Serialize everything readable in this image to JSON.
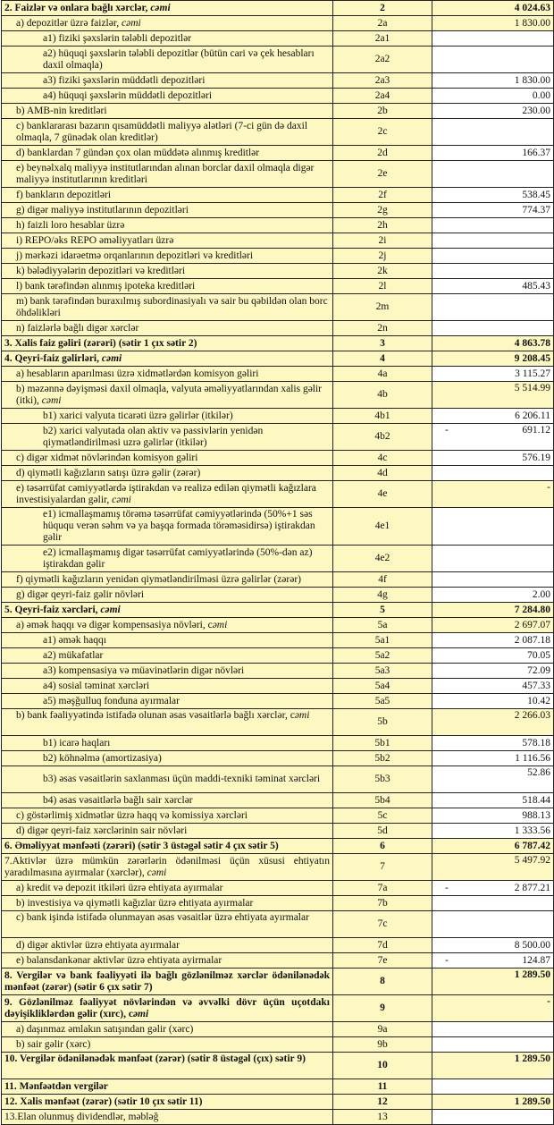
{
  "colors": {
    "row_bg": "#fdf8c2",
    "value_bg": "#ffffff",
    "border": "#222222"
  },
  "rows": [
    {
      "label": "2. Faizlər və onlara bağlı xərclər, ",
      "em": "cəmi",
      "code": "2",
      "value": "4 024.63",
      "bold": true,
      "level": 0,
      "h": 1,
      "hl": true
    },
    {
      "label": "a) depozitlər üzrə faizlər, ",
      "em": "cəmi",
      "code": "2a",
      "value": "1 830.00",
      "level": 1,
      "h": 1,
      "hl": true
    },
    {
      "label": "a1) fiziki şəxslərin tələbli depozitlər",
      "code": "2a1",
      "value": "",
      "level": 2,
      "h": 1
    },
    {
      "label": "a2) hüquqi şəxslərin tələbli depozitlər (bütün cari və çek hesabları daxil olmaqla)",
      "code": "2a2",
      "value": "",
      "level": 2,
      "h": 2
    },
    {
      "label": "a3) fiziki şəxslərin müddətli depozitləri",
      "code": "2a3",
      "value": "1 830.00",
      "level": 2,
      "h": 1
    },
    {
      "label": "a4) hüquqi şəxslərin müddətli depozitləri",
      "code": "2a4",
      "value": "0.00",
      "level": 2,
      "h": 1
    },
    {
      "label": "b) AMB-nin kreditləri",
      "code": "2b",
      "value": "230.00",
      "level": 1,
      "h": 1
    },
    {
      "label": "c) banklararası bazarın qısamüddətli maliyyə alətləri (7-ci gün də daxil olmaqla, 7 günədək olan kreditlər)",
      "code": "2c",
      "value": "",
      "level": 1,
      "h": 2
    },
    {
      "label": "d) banklardan 7 gündən çox olan müddətə alınmış kreditlər",
      "code": "2d",
      "value": "166.37",
      "level": 1,
      "h": 1
    },
    {
      "label": "e) beynəlxalq maliyyə institutlarından alınan borclar daxil olmaqla digər maliyyə institutlarının kreditləri",
      "code": "2e",
      "value": "",
      "level": 1,
      "h": 2
    },
    {
      "label": "f) bankların depozitləri",
      "code": "2f",
      "value": "538.45",
      "level": 1,
      "h": 1
    },
    {
      "label": "g) digər maliyyə institutlarının depozitləri",
      "code": "2g",
      "value": "774.37",
      "level": 1,
      "h": 1
    },
    {
      "label": "h) faizli loro hesablar üzrə",
      "code": "2h",
      "value": "",
      "level": 1,
      "h": 1
    },
    {
      "label": "i) REPO/əks REPO əməliyyatları üzrə",
      "code": "2i",
      "value": "",
      "level": 1,
      "h": 1
    },
    {
      "label": "j) mərkəzi idarəetmə orqanlarının depozitləri və kreditləri",
      "code": "2j",
      "value": "",
      "level": 1,
      "h": 1
    },
    {
      "label": "k) bələdiyyələrin depozitləri və kreditləri",
      "code": "2k",
      "value": "",
      "level": 1,
      "h": 1
    },
    {
      "label": "l) bank tərəfindən alınmış ipoteka kreditləri",
      "code": "2l",
      "value": "485.43",
      "level": 1,
      "h": 1
    },
    {
      "label": "m) bank tərəfindən buraxılmış subordinasiyalı və sair bu qəbildən olan borc öhdəlikləri",
      "code": "2m",
      "value": "",
      "level": 1,
      "h": 2
    },
    {
      "label": "n) faizlərlə bağlı digər xərclər",
      "code": "2n",
      "value": "",
      "level": 1,
      "h": 1
    },
    {
      "label": "3. Xalis faiz gəliri (zərəri) (sətir 1 çıx sətir 2)",
      "code": "3",
      "value": "4 863.78",
      "bold": true,
      "level": 0,
      "h": 1,
      "hl": true
    },
    {
      "label": "4. Qeyri-faiz gəlirləri, ",
      "em": "cəmi",
      "code": "4",
      "value": "9 208.45",
      "bold": true,
      "level": 0,
      "h": 1,
      "hl": true
    },
    {
      "label": "a) hesabların aparılması üzrə xidmətlərdən komisyon gəliri",
      "code": "4a",
      "value": "3 115.27",
      "level": 1,
      "h": 1
    },
    {
      "label": "b) məzənnə dəyişməsi daxil olmaqla, valyuta əməliyyatlarından xalis gəlir (itki), ",
      "em": "cəmi",
      "code": "4b",
      "value": "5 514.99",
      "level": 1,
      "h": 2,
      "hl": true,
      "top": true
    },
    {
      "label": "b1) xarici valyuta ticarəti üzrə gəlirlər (itkilər)",
      "code": "4b1",
      "value": "6 206.11",
      "level": 2,
      "h": 1
    },
    {
      "label": "b2) xarici valyutada olan aktiv və passivlərin yenidən qiymətləndirilməsi uzrə gəlirlər (itkilər)",
      "code": "4b2",
      "sign": "-",
      "value": "691.12",
      "level": 2,
      "h": 2,
      "top": true
    },
    {
      "label": "c) digər xidmət növlərindən komisyon gəliri",
      "code": "4c",
      "value": "576.19",
      "level": 1,
      "h": 1
    },
    {
      "label": "d) qiymətli kağızların satışı üzrə gəlir (zərər)",
      "code": "4d",
      "value": "",
      "level": 1,
      "h": 1
    },
    {
      "label": "e) təsərrüfat cəmiyyətlərdə iştirakdan və realizə edilən qiymətli kağızlara investisiyalardan gəlir, ",
      "em": "cəmi",
      "code": "4e",
      "value": "-",
      "level": 1,
      "h": 2,
      "hl": true,
      "top": true
    },
    {
      "label": "e1) icmallaşmamış törəmə təsərrüfat cəmiyyətlərində  (50%+1 səs hüququ verən səhm və ya başqa formada törəməsidirsə) iştirakdan gəlir",
      "code": "4e1",
      "value": "",
      "level": 2,
      "h": 3
    },
    {
      "label": "e2) icmallaşmamış digər təsərrüfat cəmiyyətlərində (50%-dən az) iştirakdan gəlir",
      "code": "4e2",
      "value": "",
      "level": 2,
      "h": 2
    },
    {
      "label": "f) qiymətli kağızların yenidən qiymətləndirilməsi üzrə gəlirlər (zərər)",
      "code": "4f",
      "value": "",
      "level": 1,
      "h": 1
    },
    {
      "label": "g) digər qeyri-faiz gəlir növləri",
      "code": "4g",
      "value": "2.00",
      "level": 1,
      "h": 1
    },
    {
      "label": "5. Qeyri-faiz xərcləri, ",
      "em": "cəmi",
      "code": "5",
      "value": "7 284.80",
      "bold": true,
      "level": 0,
      "h": 1,
      "hl": true
    },
    {
      "label": "a) əmək haqqı və digər kompensasiya növləri, c",
      "em": "əmi",
      "code": "5a",
      "value": "2 697.07",
      "level": 1,
      "h": 1,
      "hl": true
    },
    {
      "label": "a1) əmək haqqı",
      "code": "5a1",
      "value": "2 087.18",
      "level": 2,
      "h": 1
    },
    {
      "label": "a2) mükafatlar",
      "code": "5a2",
      "value": "70.05",
      "level": 2,
      "h": 1
    },
    {
      "label": "a3) kompensasiya və müavinətlərin digər növləri",
      "code": "5a3",
      "value": "72.09",
      "level": 2,
      "h": 1
    },
    {
      "label": "a4) sosial təminat xərcləri",
      "code": "5a4",
      "value": "457.33",
      "level": 2,
      "h": 1
    },
    {
      "label": "a5) məşğulluq fonduna ayırmalar",
      "code": "5a5",
      "value": "10.42",
      "level": 2,
      "h": 1
    },
    {
      "label": "b) bank fəaliyyətində istifadə olunan əsas vəsaitlərlə bağlı xərclər, c",
      "em": "əmi",
      "code": "5b",
      "value": "2 266.03",
      "level": 1,
      "h": 2,
      "hl": true,
      "top": true,
      "labelTop": true
    },
    {
      "label": "b1) icarə haqları",
      "code": "5b1",
      "value": "578.18",
      "level": 2,
      "h": 1
    },
    {
      "label": "b2) köhnəlmə (amortizasiya)",
      "code": "5b2",
      "value": "1 116.56",
      "level": 2,
      "h": 1
    },
    {
      "label": "b3) əsas vəsaitlərin saxlanması üçün maddi-texniki təminat xərcləri",
      "code": "5b3",
      "value": "52.86",
      "level": 2,
      "h": 2,
      "top": true
    },
    {
      "label": "b4) əsas vəsaitlərlə bağlı sair xərclər",
      "code": "5b4",
      "value": "518.44",
      "level": 2,
      "h": 1
    },
    {
      "label": "c) göstərlimiş xidmətlər üzrə haqq və komissiya xərcləri",
      "code": "5c",
      "value": "988.13",
      "level": 1,
      "h": 1
    },
    {
      "label": "d) digər qeyri-faiz xərclərinin sair növləri",
      "code": "5d",
      "value": "1 333.56",
      "level": 1,
      "h": 1
    },
    {
      "label": "6. Əməliyyat mənfəəti (zərəri) (sətir 3 üstəgəl sətir 4 çıx sətir 5)",
      "code": "6",
      "value": "6 787.42",
      "bold": true,
      "level": 0,
      "h": 1,
      "hl": true
    },
    {
      "label": "7.Aktivlər üzrə mümkün zərərlərin ödənilməsi üçün xüsusi ehtiyatın yaradılmasına ayırmalar (xərclər), ",
      "em": "cəmi",
      "code": "7",
      "value": "5 497.92",
      "level": 0,
      "h": 2,
      "hl": true,
      "top": true,
      "just": true
    },
    {
      "label": "a) kredit və depozit itkiləri üzrə ehtiyata ayırmalar",
      "code": "7a",
      "sign": "-",
      "value": "2 877.21",
      "level": 1,
      "h": 1
    },
    {
      "label": "b) investisiya və qiymətli kağızlar üzrə ehtiyata ayırmalar",
      "code": "7b",
      "value": "",
      "level": 1,
      "h": 1
    },
    {
      "label": "c) bank işində istifadə olunmayan əsas vəsaitlər üzrə ehtiyata ayırmalar",
      "code": "7c",
      "value": "",
      "level": 1,
      "h": 2,
      "labelTop": true
    },
    {
      "label": "d) digər aktivlər üzrə ehtiyata ayırmalar",
      "code": "7d",
      "value": "8 500.00",
      "level": 1,
      "h": 1
    },
    {
      "label": "e) balansdankənar aktivlər üzrə ehtiyata ayirmalar",
      "code": "7e",
      "sign": "-",
      "value": "124.87",
      "level": 1,
      "h": 1
    },
    {
      "label": "8. Vergilər və bank fəaliyyəti ilə bağlı gözlənilməz xərclər ödənilənədək mənfəət (zərər) (sətir 6 çıx sətir 7)",
      "code": "8",
      "value": "1 289.50",
      "bold": true,
      "level": 0,
      "h": 2,
      "hl": true,
      "top": true,
      "just": true
    },
    {
      "label": "9. Gözlənilməz fəaliyyət növlərindən və əvvəlki dövr üçün uçotdakı dəyişikliklərdən gəlir (xırc), c",
      "em": "əmi",
      "code": "9",
      "value": "-",
      "bold": true,
      "level": 0,
      "h": 2,
      "hl": true,
      "top": true,
      "just": true
    },
    {
      "label": "a) daşınmaz əmlakın satışından gəlir (xərc)",
      "code": "9a",
      "value": "",
      "level": 1,
      "h": 1
    },
    {
      "label": "b) sair gəlir (xərc)",
      "code": "9b",
      "value": "",
      "level": 1,
      "h": 1
    },
    {
      "label": "10. Vergilər ödənilənədək mənfəət (zərər) (sətir 8 üstəgəl (çıx) sətir 9)",
      "code": "10",
      "value": "1 289.50",
      "bold": true,
      "level": 0,
      "h": 2,
      "hl": true,
      "top": true,
      "labelTop": true
    },
    {
      "label": "11. Mənfəətdən vergilər",
      "code": "11",
      "value": "",
      "bold": true,
      "level": 0,
      "h": 1
    },
    {
      "label": "12. Xalis mənfəət (zərər) (sətir 10 çıx sətir 11)",
      "code": "12",
      "value": "1 289.50",
      "bold": true,
      "level": 0,
      "h": 1,
      "hl": true
    },
    {
      "label": "13.Elan olunmuş dividendlər, məbləğ",
      "code": "13",
      "value": "",
      "level": 0,
      "h": 1
    }
  ]
}
